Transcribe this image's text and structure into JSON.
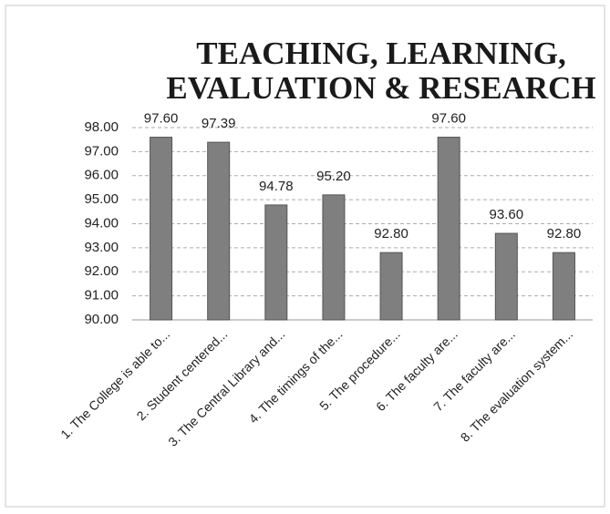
{
  "chart_data": {
    "type": "bar",
    "title": [
      "TEACHING, LEARNING,",
      "EVALUATION & RESEARCH"
    ],
    "categories": [
      "1. The College is able to...",
      "2. Student centered...",
      "3. The Central Library and...",
      "4. The timings of the...",
      "5. The procedure...",
      "6. The faculty are...",
      "7. The faculty are...",
      "8. The evaluation system..."
    ],
    "values": [
      97.6,
      97.39,
      94.78,
      95.2,
      92.8,
      97.6,
      93.6,
      92.8
    ],
    "value_labels": [
      "97.60",
      "97.39",
      "94.78",
      "95.20",
      "92.80",
      "97.60",
      "93.60",
      "92.80"
    ],
    "color": "#7f7f7f",
    "ylim": [
      90,
      98
    ],
    "yticks": [
      {
        "value": 90,
        "label": "90.00"
      },
      {
        "value": 91,
        "label": "91.00"
      },
      {
        "value": 92,
        "label": "92.00"
      },
      {
        "value": 93,
        "label": "93.00"
      },
      {
        "value": 94,
        "label": "94.00"
      },
      {
        "value": 95,
        "label": "95.00"
      },
      {
        "value": 96,
        "label": "96.00"
      },
      {
        "value": 97,
        "label": "97.00"
      },
      {
        "value": 98,
        "label": "98.00"
      }
    ],
    "grid": true
  }
}
